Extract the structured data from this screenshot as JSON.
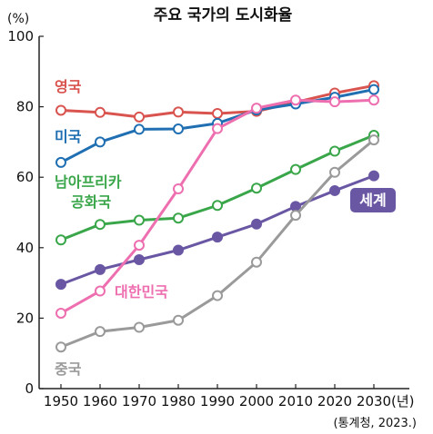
{
  "chart_data": {
    "type": "line",
    "title": "주요 국가의 도시화율",
    "y_unit": "(%)",
    "x_unit": "(년)",
    "source": "(통계청, 2023.)",
    "x": [
      1950,
      1960,
      1970,
      1980,
      1990,
      2000,
      2010,
      2020,
      2030
    ],
    "ylim": [
      0,
      100
    ],
    "yticks": [
      0,
      20,
      40,
      60,
      80,
      100
    ],
    "grid": false,
    "series": [
      {
        "name": "영국",
        "color": "#d9534f",
        "marker": "open",
        "values": [
          79.0,
          78.4,
          77.1,
          78.5,
          78.1,
          78.7,
          81.3,
          83.9,
          86.0
        ],
        "label_lines": [
          "영국"
        ]
      },
      {
        "name": "미국",
        "color": "#1f6fb2",
        "marker": "open",
        "values": [
          64.2,
          70.0,
          73.6,
          73.7,
          75.3,
          79.1,
          80.8,
          82.7,
          84.9
        ],
        "label_lines": [
          "미국"
        ]
      },
      {
        "name": "남아프리카 공화국",
        "color": "#3aa64a",
        "marker": "open",
        "values": [
          42.2,
          46.6,
          47.8,
          48.4,
          52.0,
          56.9,
          62.2,
          67.4,
          71.9
        ],
        "label_lines": [
          "남아프리카",
          "공화국"
        ]
      },
      {
        "name": "세계",
        "color": "#6a57a4",
        "marker": "filled",
        "values": [
          29.6,
          33.8,
          36.6,
          39.3,
          43.0,
          46.7,
          51.7,
          56.2,
          60.4
        ],
        "label_lines": [
          "세계"
        ]
      },
      {
        "name": "대한민국",
        "color": "#ee6fb0",
        "marker": "open",
        "values": [
          21.4,
          27.7,
          40.7,
          56.7,
          73.8,
          79.6,
          81.9,
          81.4,
          81.9
        ],
        "label_lines": [
          "대한민국"
        ]
      },
      {
        "name": "중국",
        "color": "#9a9a9a",
        "marker": "open",
        "values": [
          11.8,
          16.2,
          17.4,
          19.4,
          26.4,
          35.9,
          49.2,
          61.4,
          70.6
        ],
        "label_lines": [
          "중국"
        ]
      }
    ]
  }
}
